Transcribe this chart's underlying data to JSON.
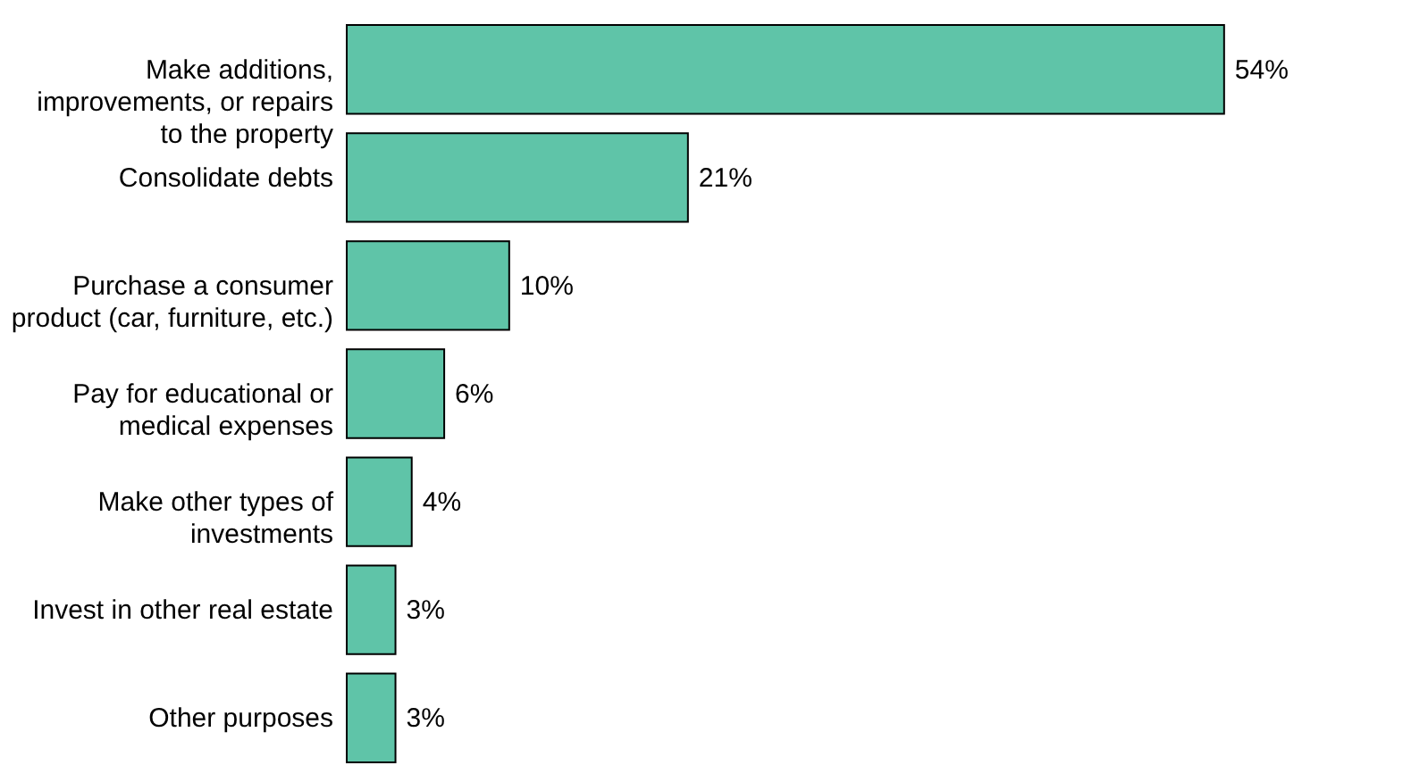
{
  "chart_data": {
    "type": "bar",
    "orientation": "horizontal",
    "categories": [
      "Make additions,\nimprovements, or repairs\nto the property",
      "Consolidate debts",
      "Purchase a consumer\nproduct (car, furniture, etc.)",
      "Pay for educational or\nmedical expenses",
      "Make other types of\ninvestments",
      "Invest in other real estate",
      "Other purposes"
    ],
    "values": [
      54,
      21,
      10,
      6,
      4,
      3,
      3
    ],
    "value_labels": [
      "54%",
      "21%",
      "10%",
      "6%",
      "4%",
      "3%",
      "3%"
    ],
    "color": "#5fc4a8"
  }
}
